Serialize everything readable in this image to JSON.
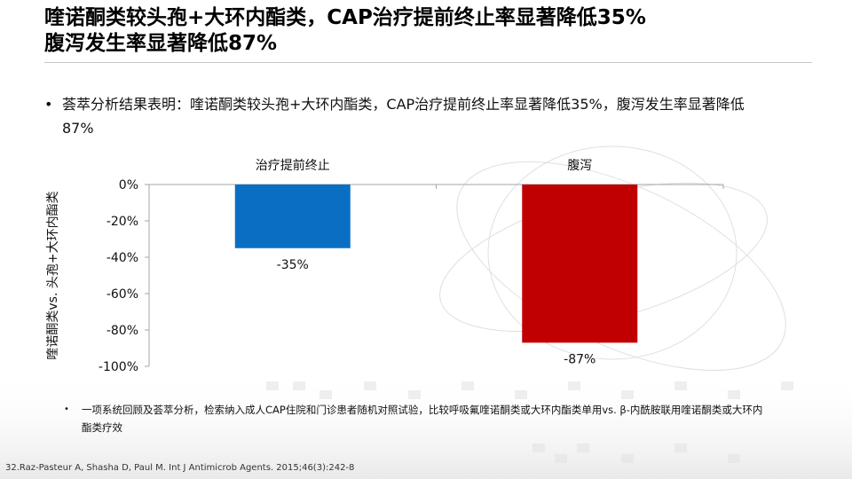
{
  "title": {
    "line1": "喹诺酮类较头孢+大环内酯类，CAP治疗提前终止率显著降低35%",
    "line2": "腹泻发生率显著降低87%"
  },
  "bullet": {
    "text": "荟萃分析结果表明：喹诺酮类较头孢+大环内酯类，CAP治疗提前终止率显著降低35%，腹泻发生率显著降低87%"
  },
  "chart_data": {
    "type": "bar",
    "title": "",
    "xlabel": "",
    "ylabel": "喹诺酮类vs. 头孢+大环内酯类",
    "categories": [
      "治疗提前终止",
      "腹泻"
    ],
    "values": [
      -35,
      -87
    ],
    "value_labels": [
      "-35%",
      "-87%"
    ],
    "colors": [
      "#0a6fc2",
      "#c00000"
    ],
    "ylim": [
      -100,
      0
    ],
    "yticks": [
      0,
      -20,
      -40,
      -60,
      -80,
      -100
    ],
    "ytick_labels": [
      "0%",
      "-20%",
      "-40%",
      "-60%",
      "-80%",
      "-100%"
    ],
    "category_labels_position": "top",
    "grid": false
  },
  "footnote": {
    "text": "一项系统回顾及荟萃分析，检索纳入成人CAP住院和门诊患者随机对照试验，比较呼吸氟喹诺酮类或大环内酯类单用vs. β-内酰胺联用喹诺酮类或大环内酯类疗效"
  },
  "reference": {
    "text": "32.Raz-Pasteur A, Shasha D, Paul M. Int J Antimicrob Agents. 2015;46(3):242-8"
  }
}
